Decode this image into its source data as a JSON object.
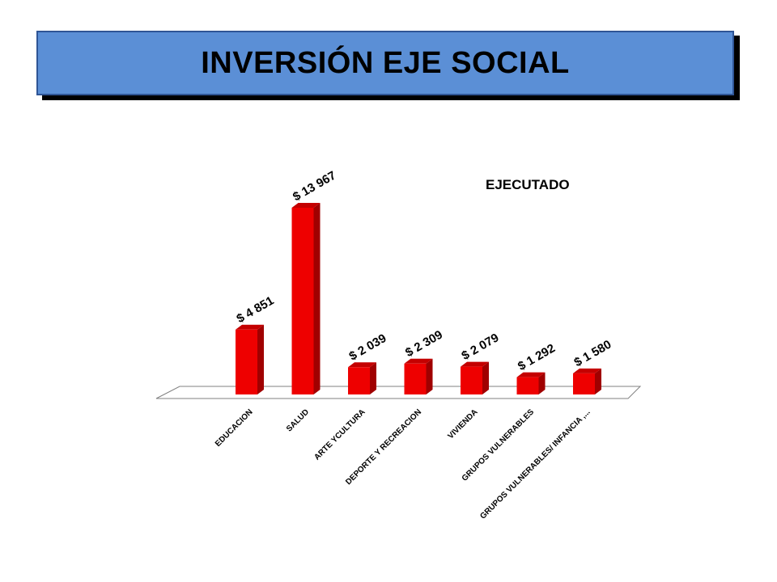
{
  "header": {
    "title": "INVERSIÓN EJE SOCIAL"
  },
  "chart_data": {
    "type": "bar",
    "title": "INVERSIÓN EJE SOCIAL",
    "categories": [
      "EDUCACION",
      "SALUD",
      "ARTE YCULTURA",
      "DEPORTE Y RECREACION",
      "VIVIENDA",
      "GRUPOS VULNERABLES",
      "GRUPOS VULNERABLES/ INFANCIA ,..."
    ],
    "series": [
      {
        "name": "EJECUTADO",
        "values": [
          4851,
          13967,
          2039,
          2309,
          2079,
          1292,
          1580
        ],
        "labels": [
          "$ 4 851",
          "$ 13 967",
          "$ 2 039",
          "$ 2 309",
          "$ 2 079",
          "$ 1 292",
          "$ 1 580"
        ]
      }
    ],
    "legend": "top-right",
    "grid": false,
    "colors": {
      "bar_front": "#ee0000",
      "bar_side": "#a00000",
      "bar_top": "#c40000"
    }
  }
}
